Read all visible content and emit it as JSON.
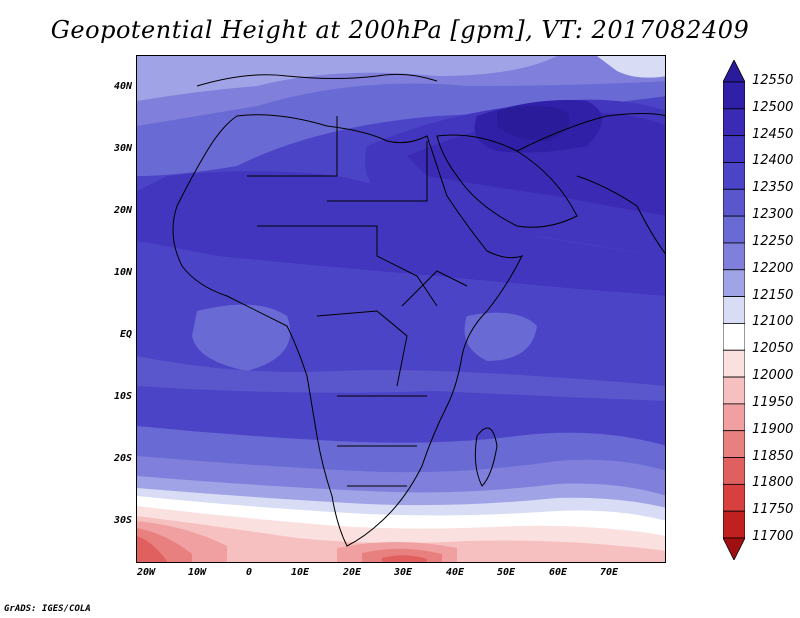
{
  "title": "Geopotential Height at 200hPa [gpm], VT: 2017082409",
  "lat_labels": [
    "40N",
    "30N",
    "20N",
    "10N",
    "EQ",
    "10S",
    "20S",
    "30S"
  ],
  "lon_labels": [
    "20W",
    "10W",
    "0",
    "10E",
    "20E",
    "30E",
    "40E",
    "50E",
    "60E",
    "70E"
  ],
  "colorbar": {
    "levels": [
      "12550",
      "12500",
      "12450",
      "12400",
      "12350",
      "12300",
      "12250",
      "12200",
      "12150",
      "12100",
      "12050",
      "12000",
      "11950",
      "11900",
      "11850",
      "11800",
      "11750",
      "11700"
    ],
    "colors": [
      "#2a1b9a",
      "#3020a8",
      "#3a2ab4",
      "#4236be",
      "#4c44c6",
      "#5a56cc",
      "#6a6ad4",
      "#8080dc",
      "#a0a4e6",
      "#d8dcf4",
      "#ffffff",
      "#fbe0e0",
      "#f6c0c0",
      "#f0a0a0",
      "#e88080",
      "#e06060",
      "#d84040",
      "#c02020",
      "#a01010"
    ]
  },
  "credit": "GrADS: IGES/COLA"
}
